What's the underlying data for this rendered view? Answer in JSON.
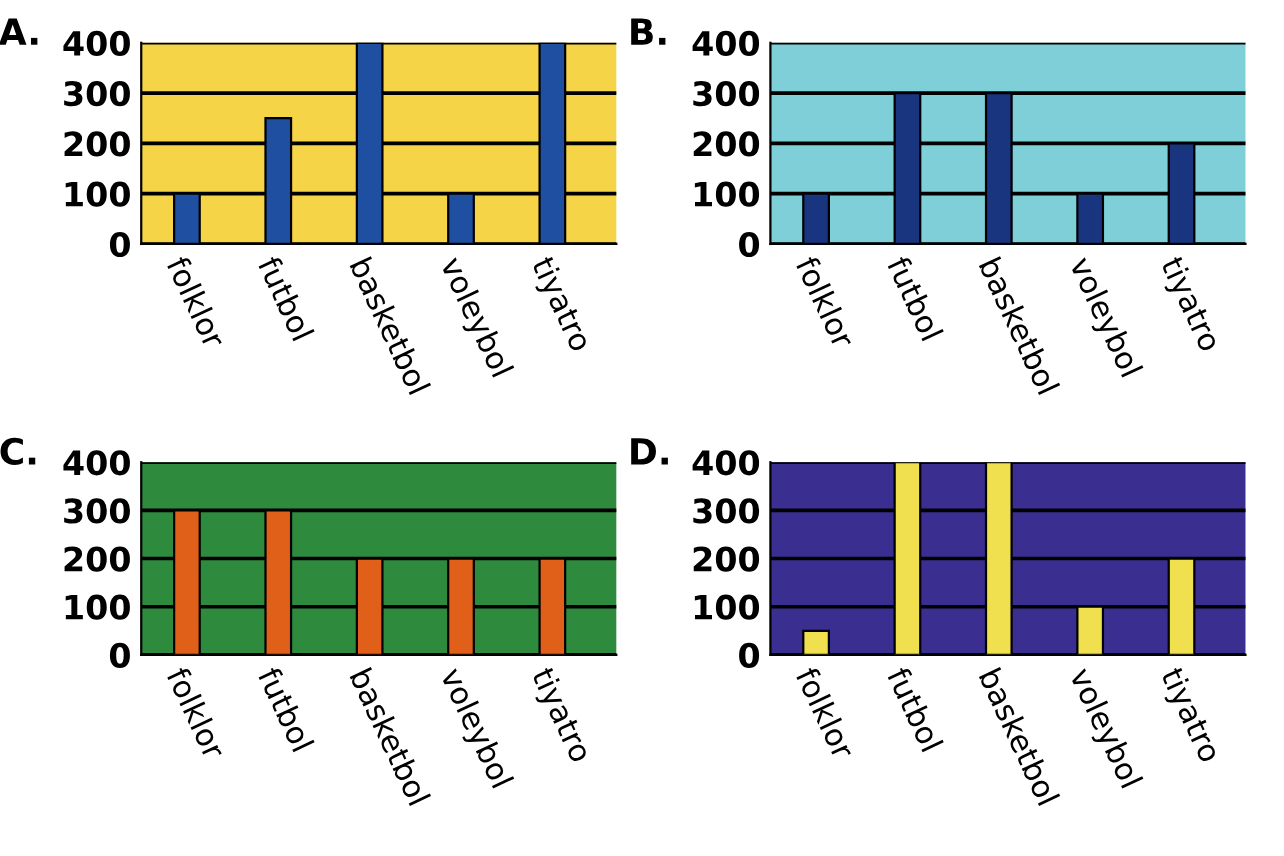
{
  "chart_data": [
    {
      "type": "bar",
      "title": "A.",
      "categories": [
        "folklor",
        "futbol",
        "basketbol",
        "voleybol",
        "tiyatro"
      ],
      "values": [
        100,
        250,
        400,
        100,
        400
      ],
      "color": "#1f4fa0",
      "ylim": [
        0,
        400
      ],
      "yticks": [
        0,
        100,
        200,
        300,
        400
      ],
      "grid": "y"
    },
    {
      "type": "bar",
      "title": "B.",
      "categories": [
        "folklor",
        "futbol",
        "basketbol",
        "voleybol",
        "tiyatro"
      ],
      "values": [
        100,
        300,
        300,
        100,
        200
      ],
      "color": "#1a3580",
      "ylim": [
        0,
        400
      ],
      "yticks": [
        0,
        100,
        200,
        300,
        400
      ],
      "grid": "y"
    },
    {
      "type": "bar",
      "title": "C.",
      "categories": [
        "folklor",
        "futbol",
        "basketbol",
        "voleybol",
        "tiyatro"
      ],
      "values": [
        300,
        300,
        200,
        200,
        200
      ],
      "color": "#e0601a",
      "ylim": [
        0,
        400
      ],
      "yticks": [
        0,
        100,
        200,
        300,
        400
      ],
      "grid": "y"
    },
    {
      "type": "bar",
      "title": "D.",
      "categories": [
        "folklor",
        "futbol",
        "basketbol",
        "voleybol",
        "tiyatro"
      ],
      "values": [
        50,
        400,
        400,
        100,
        200
      ],
      "color": "#f0e050",
      "ylim": [
        0,
        400
      ],
      "yticks": [
        0,
        100,
        200,
        300,
        400
      ],
      "grid": "y"
    }
  ]
}
